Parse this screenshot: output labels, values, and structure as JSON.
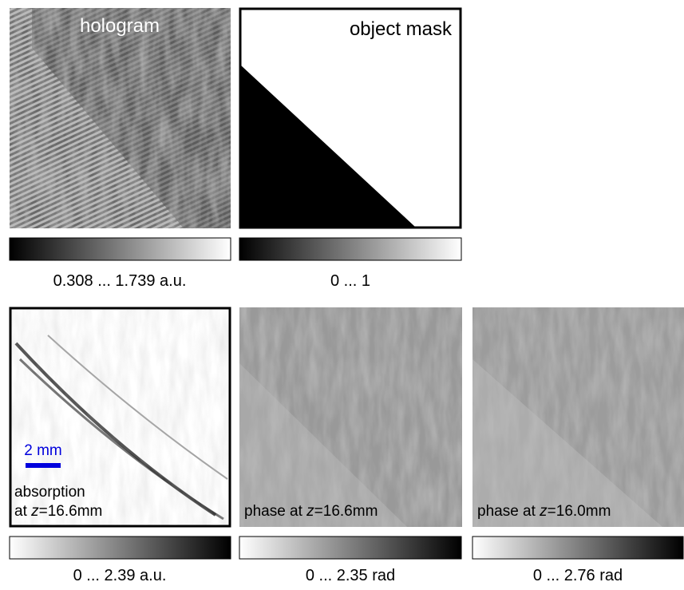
{
  "panels": [
    {
      "label": "hologram",
      "colorbar": "0.308 ... 1.739 a.u."
    },
    {
      "label": "object mask",
      "colorbar": "0 ... 1"
    },
    {
      "label_line1": "absorption",
      "label_prefix": "at ",
      "label_var": "z",
      "label_suffix": "=16.6mm",
      "colorbar": "0 ... 2.39 a.u.",
      "scale_bar": "2 mm"
    },
    {
      "label_prefix": "phase at ",
      "label_var": "z",
      "label_suffix": "=16.6mm",
      "colorbar": "0 ... 2.35 rad"
    },
    {
      "label_prefix": "phase at ",
      "label_var": "z",
      "label_suffix": "=16.0mm",
      "colorbar": "0 ... 2.76 rad"
    }
  ]
}
